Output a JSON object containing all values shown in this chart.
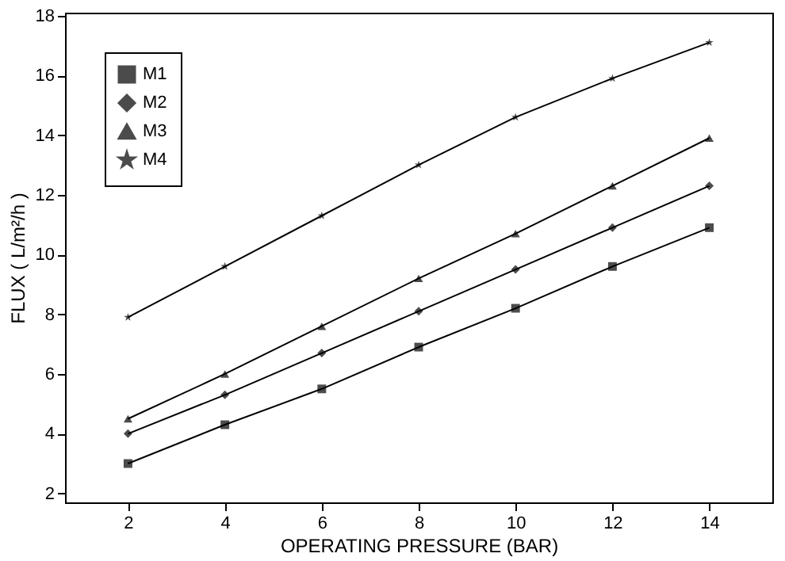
{
  "chart_data": {
    "type": "line",
    "xlabel": "OPERATING PRESSURE (BAR)",
    "ylabel": "FLUX ( L/m²/h )",
    "x": [
      2,
      4,
      6,
      8,
      10,
      12,
      14
    ],
    "series": [
      {
        "name": "M1",
        "color": "#000000",
        "marker": "square",
        "values": [
          3.0,
          4.3,
          5.5,
          6.9,
          8.2,
          9.6,
          10.9
        ]
      },
      {
        "name": "M2",
        "color": "#000000",
        "marker": "diamond",
        "values": [
          4.0,
          5.3,
          6.7,
          8.1,
          9.5,
          10.9,
          12.3
        ]
      },
      {
        "name": "M3",
        "color": "#000000",
        "marker": "triangle",
        "values": [
          4.5,
          6.0,
          7.6,
          9.2,
          10.7,
          12.3,
          13.9
        ]
      },
      {
        "name": "M4",
        "color": "#000000",
        "marker": "star",
        "values": [
          7.9,
          9.6,
          11.3,
          13.0,
          14.6,
          15.9,
          17.1
        ]
      }
    ],
    "xlim": [
      0.7,
      15.3
    ],
    "ylim": [
      1.7,
      18.1
    ],
    "xticks": [
      2,
      4,
      6,
      8,
      10,
      12,
      14
    ],
    "yticks": [
      2,
      4,
      6,
      8,
      10,
      12,
      14,
      16,
      18
    ],
    "grid": false,
    "legend": "top left",
    "line_style": "solid"
  }
}
